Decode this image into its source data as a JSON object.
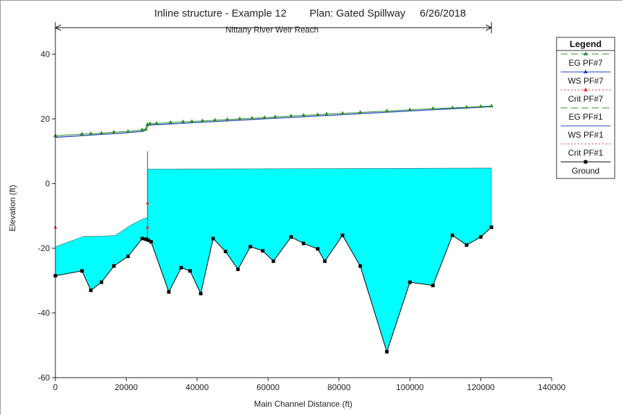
{
  "chart_data": {
    "type": "line",
    "title": "Inline structure - Example 12        Plan: Gated Spillway     6/26/2018",
    "reach_label": "Nittany River Weir Reach",
    "xlabel": "Main Channel Distance (ft)",
    "ylabel": "Elevation (ft)",
    "xlim": [
      0,
      140000
    ],
    "ylim": [
      -60,
      45
    ],
    "xticks": [
      0,
      20000,
      40000,
      60000,
      80000,
      100000,
      120000,
      140000
    ],
    "yticks": [
      -60,
      -40,
      -20,
      0,
      20,
      40
    ],
    "reach_span": [
      0,
      123000
    ],
    "structure_x": 26000,
    "grid": false,
    "legend": {
      "title": "Legend",
      "position": "right",
      "entries": [
        {
          "label": "EG  PF#7",
          "color": "#2e8b2e",
          "style": "dash",
          "marker": "triangle"
        },
        {
          "label": "WS  PF#7",
          "color": "#1f3fbf",
          "style": "solid",
          "marker": "triangle"
        },
        {
          "label": "Crit  PF#7",
          "color": "#e03030",
          "style": "dot",
          "marker": "triangle"
        },
        {
          "label": "EG  PF#1",
          "color": "#2e8b2e",
          "style": "dash",
          "marker": "none"
        },
        {
          "label": "WS  PF#1",
          "color": "#1f3fbf",
          "style": "solid",
          "marker": "none"
        },
        {
          "label": "Crit  PF#1",
          "color": "#e03030",
          "style": "dot",
          "marker": "none"
        },
        {
          "label": "Ground",
          "color": "#000000",
          "style": "solid",
          "marker": "square"
        }
      ]
    },
    "colors": {
      "water_fill": "#00ffff",
      "eg": "#2e8b2e",
      "ws": "#1f3fbf",
      "crit": "#e03030",
      "ground": "#000000"
    },
    "series": [
      {
        "name": "Ground",
        "x": [
          0,
          7500,
          10000,
          13000,
          16500,
          20500,
          24500,
          25500,
          26200,
          27000,
          32000,
          35500,
          38000,
          41000,
          44500,
          48000,
          51500,
          55000,
          58500,
          61500,
          66500,
          70000,
          74000,
          76000,
          81000,
          86000,
          93500,
          100000,
          106500,
          112000,
          116000,
          120000,
          123000
        ],
        "y": [
          -28.5,
          -27,
          -33,
          -30.5,
          -25.5,
          -22.5,
          -17,
          -17.2,
          -17.5,
          -18,
          -33.5,
          -26,
          -27,
          -34,
          -17,
          -21,
          -26.5,
          -19.5,
          -20.8,
          -24,
          -16.5,
          -18.5,
          -20.2,
          -24,
          -16,
          -25.5,
          -52,
          -30.5,
          -31.5,
          -16,
          -19,
          -16.5,
          -13.5
        ]
      },
      {
        "name": "WS PF#1",
        "x": [
          0,
          8000,
          13000,
          17000,
          21000,
          24500,
          26000,
          26000,
          123000
        ],
        "y": [
          -19.5,
          -16.3,
          -16.3,
          -16,
          -13,
          -11,
          -10.5,
          4.5,
          4.8
        ]
      },
      {
        "name": "WS PF#7",
        "x": [
          0,
          20000,
          25000,
          26000,
          26500,
          123000
        ],
        "y": [
          14.3,
          15.7,
          16.2,
          17.7,
          18.1,
          23.8
        ]
      },
      {
        "name": "EG PF#7",
        "x": [
          0,
          7500,
          10000,
          13000,
          16500,
          20500,
          24500,
          25500,
          26000,
          26700,
          28500,
          32500,
          36000,
          38500,
          41500,
          45000,
          48500,
          52000,
          55500,
          59000,
          62000,
          66500,
          70000,
          74000,
          76500,
          81000,
          86000,
          93500,
          100000,
          106500,
          112000,
          116000,
          120000,
          123000
        ],
        "y": [
          14.8,
          15.3,
          15.4,
          15.6,
          15.9,
          16.1,
          16.6,
          16.8,
          18.3,
          18.5,
          18.6,
          18.9,
          19.1,
          19.2,
          19.4,
          19.6,
          19.8,
          20,
          20.2,
          20.4,
          20.6,
          20.9,
          21.1,
          21.3,
          21.5,
          21.7,
          22,
          22.4,
          22.8,
          23.2,
          23.4,
          23.6,
          23.8,
          24
        ]
      },
      {
        "name": "Crit PF#7",
        "x": [
          0,
          26000,
          26000
        ],
        "y": [
          -13.5,
          -6,
          -13.5
        ]
      }
    ]
  }
}
